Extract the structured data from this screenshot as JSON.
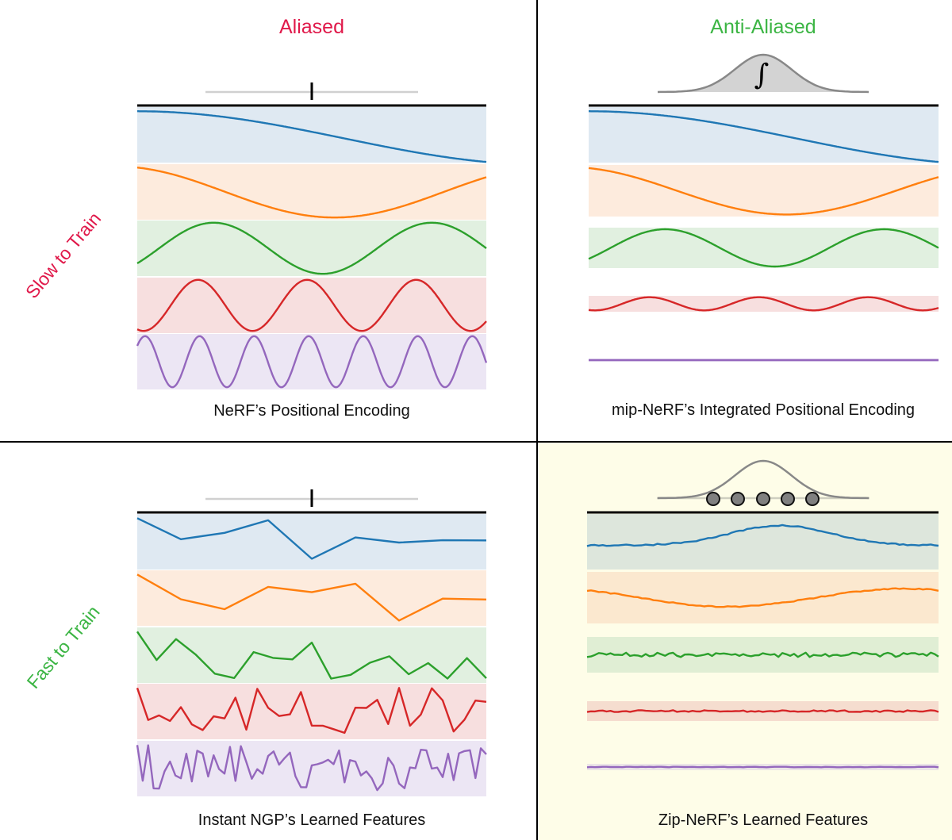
{
  "columns": {
    "aliased": "Aliased",
    "anti_aliased": "Anti-Aliased"
  },
  "rows": {
    "slow": "Slow to Train",
    "fast": "Fast to Train"
  },
  "captions": {
    "nerf": "NeRF’s Positional Encoding",
    "mipnerf": "mip-NeRF’s Integrated Positional Encoding",
    "ngp": "Instant NGP’s Learned Features",
    "zipnerf": "Zip-NeRF’s Learned Features"
  },
  "integral_symbol": "∫",
  "colors": {
    "aliased": "#e0194a",
    "anti_aliased": "#3cb544",
    "highlight_bg": "#fefde8",
    "series": [
      "#1f77b4",
      "#ff7f0e",
      "#2ca02c",
      "#d62728",
      "#9467bd"
    ]
  }
}
